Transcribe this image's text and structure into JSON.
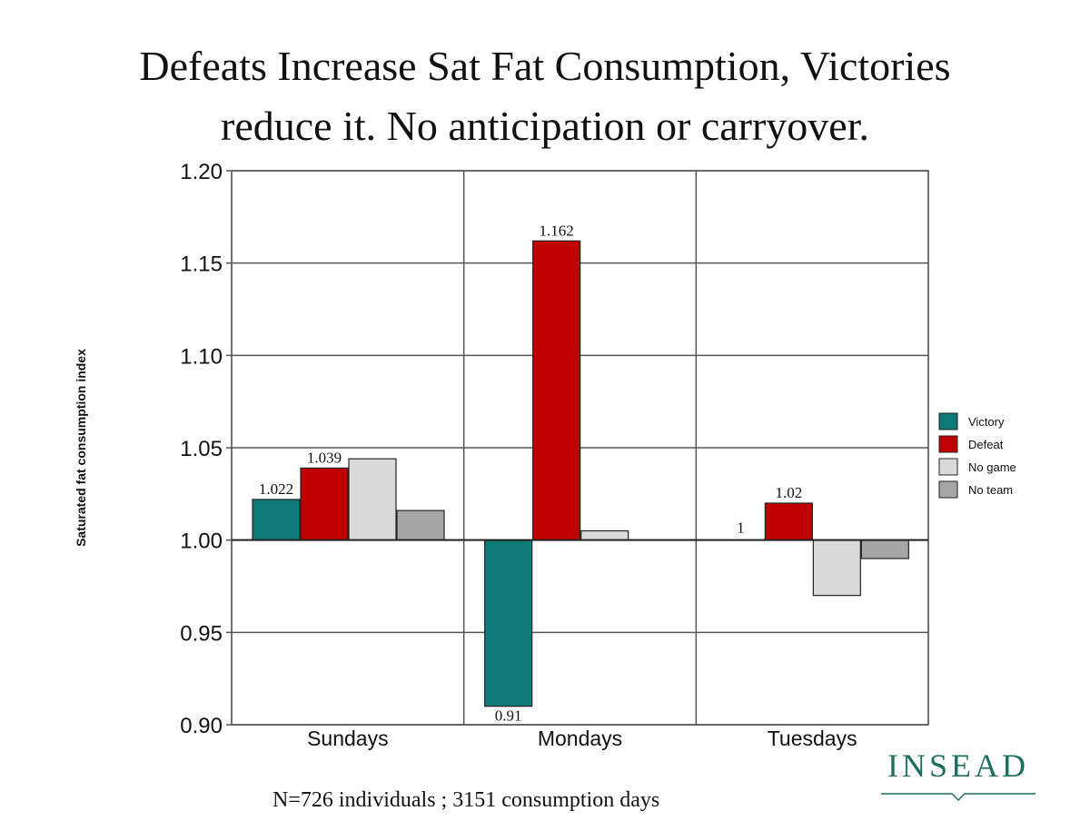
{
  "slide": {
    "title_line1": "Defeats Increase Sat Fat Consumption, Victories",
    "title_line2": "reduce it. No anticipation or carryover.",
    "footnote": "N=726 individuals ; 3151 consumption days",
    "logo_text": "INSEAD",
    "logo_color": "#1c6f5f"
  },
  "chart_data": {
    "type": "bar",
    "title": "",
    "xlabel": "",
    "ylabel": "Saturated fat consumption index",
    "ylim": [
      0.9,
      1.2
    ],
    "baseline": 1.0,
    "yticks": [
      "0.90",
      "0.95",
      "1.00",
      "1.05",
      "1.10",
      "1.15",
      "1.20"
    ],
    "ytick_values": [
      0.9,
      0.95,
      1.0,
      1.05,
      1.1,
      1.15,
      1.2
    ],
    "grid": true,
    "legend_position": "right",
    "categories": [
      "Sundays",
      "Mondays",
      "Tuesdays"
    ],
    "series": [
      {
        "name": "Victory",
        "color": "#0e7b78",
        "values": [
          1.022,
          0.91,
          1.0
        ],
        "labels": [
          "1.022",
          "0.91",
          "1"
        ]
      },
      {
        "name": "Defeat",
        "color": "#c00000",
        "values": [
          1.039,
          1.162,
          1.02
        ],
        "labels": [
          "1.039",
          "1.162",
          "1.02"
        ]
      },
      {
        "name": "No game",
        "color": "#d9d9d9",
        "values": [
          1.044,
          1.005,
          0.97
        ],
        "labels": [
          "",
          "",
          ""
        ]
      },
      {
        "name": "No team",
        "color": "#a6a6a6",
        "values": [
          1.016,
          null,
          0.99
        ],
        "labels": [
          "",
          "",
          ""
        ]
      }
    ]
  }
}
